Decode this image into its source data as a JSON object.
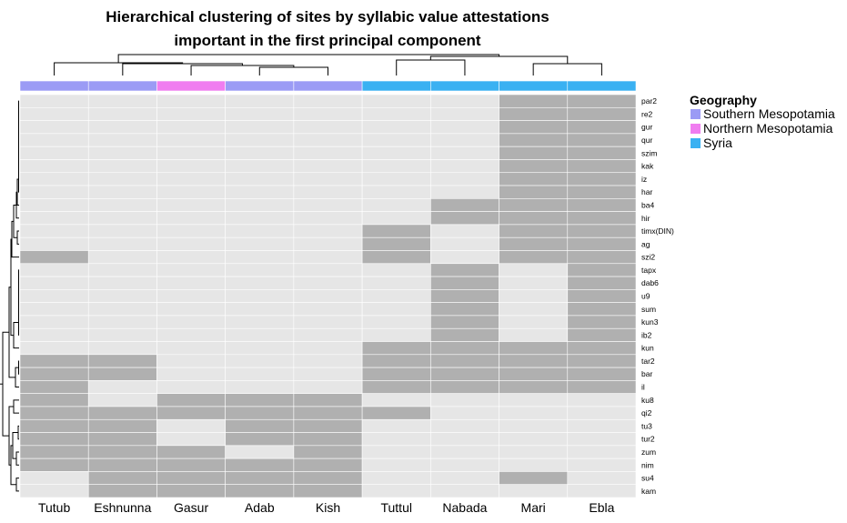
{
  "chart_data": {
    "type": "heatmap",
    "title_lines": [
      "Hierarchical clustering of sites by syllabic value attestations",
      "important in the first principal component"
    ],
    "columns": [
      "Tutub",
      "Eshnunna",
      "Gasur",
      "Adab",
      "Kish",
      "Tuttul",
      "Nabada",
      "Mari",
      "Ebla"
    ],
    "rows": [
      "par2",
      "re2",
      "gur",
      "qur",
      "szim",
      "kak",
      "iz",
      "har",
      "ba4",
      "hir",
      "timx(DIN)",
      "ag",
      "szi2",
      "tapx",
      "dab6",
      "u9",
      "sum",
      "kun3",
      "ib2",
      "kun",
      "tar2",
      "bar",
      "il",
      "ku8",
      "qi2",
      "tu3",
      "tur2",
      "zum",
      "nim",
      "su4",
      "kam"
    ],
    "values": [
      [
        0,
        0,
        0,
        0,
        0,
        0,
        0,
        1,
        1
      ],
      [
        0,
        0,
        0,
        0,
        0,
        0,
        0,
        1,
        1
      ],
      [
        0,
        0,
        0,
        0,
        0,
        0,
        0,
        1,
        1
      ],
      [
        0,
        0,
        0,
        0,
        0,
        0,
        0,
        1,
        1
      ],
      [
        0,
        0,
        0,
        0,
        0,
        0,
        0,
        1,
        1
      ],
      [
        0,
        0,
        0,
        0,
        0,
        0,
        0,
        1,
        1
      ],
      [
        0,
        0,
        0,
        0,
        0,
        0,
        0,
        1,
        1
      ],
      [
        0,
        0,
        0,
        0,
        0,
        0,
        0,
        1,
        1
      ],
      [
        0,
        0,
        0,
        0,
        0,
        0,
        1,
        1,
        1
      ],
      [
        0,
        0,
        0,
        0,
        0,
        0,
        1,
        1,
        1
      ],
      [
        0,
        0,
        0,
        0,
        0,
        1,
        0,
        1,
        1
      ],
      [
        0,
        0,
        0,
        0,
        0,
        1,
        0,
        1,
        1
      ],
      [
        1,
        0,
        0,
        0,
        0,
        1,
        0,
        1,
        1
      ],
      [
        0,
        0,
        0,
        0,
        0,
        0,
        1,
        0,
        1
      ],
      [
        0,
        0,
        0,
        0,
        0,
        0,
        1,
        0,
        1
      ],
      [
        0,
        0,
        0,
        0,
        0,
        0,
        1,
        0,
        1
      ],
      [
        0,
        0,
        0,
        0,
        0,
        0,
        1,
        0,
        1
      ],
      [
        0,
        0,
        0,
        0,
        0,
        0,
        1,
        0,
        1
      ],
      [
        0,
        0,
        0,
        0,
        0,
        0,
        1,
        0,
        1
      ],
      [
        0,
        0,
        0,
        0,
        0,
        1,
        1,
        1,
        1
      ],
      [
        1,
        1,
        0,
        0,
        0,
        1,
        1,
        1,
        1
      ],
      [
        1,
        1,
        0,
        0,
        0,
        1,
        1,
        1,
        1
      ],
      [
        1,
        0,
        0,
        0,
        0,
        1,
        1,
        1,
        1
      ],
      [
        1,
        0,
        1,
        1,
        1,
        0,
        0,
        0,
        0
      ],
      [
        1,
        1,
        1,
        1,
        1,
        1,
        0,
        0,
        0
      ],
      [
        1,
        1,
        0,
        1,
        1,
        0,
        0,
        0,
        0
      ],
      [
        1,
        1,
        0,
        1,
        1,
        0,
        0,
        0,
        0
      ],
      [
        1,
        1,
        1,
        0,
        1,
        0,
        0,
        0,
        0
      ],
      [
        1,
        1,
        1,
        1,
        1,
        0,
        0,
        0,
        0
      ],
      [
        0,
        1,
        1,
        1,
        1,
        0,
        0,
        1,
        0
      ],
      [
        0,
        1,
        1,
        1,
        1,
        0,
        0,
        0,
        0
      ]
    ],
    "geography_annotation": [
      "Southern Mesopotamia",
      "Southern Mesopotamia",
      "Northern Mesopotamia",
      "Southern Mesopotamia",
      "Southern Mesopotamia",
      "Syria",
      "Syria",
      "Syria",
      "Syria"
    ],
    "legend": {
      "title": "Geography",
      "placement": "right",
      "entries": [
        {
          "label": "Southern Mesopotamia",
          "color": "#9b9bf5"
        },
        {
          "label": "Northern Mesopotamia",
          "color": "#f07df0"
        },
        {
          "label": "Syria",
          "color": "#3ab1f2"
        }
      ]
    },
    "colors": {
      "present": "#b0b0b0",
      "absent": "#e6e6e6",
      "dendrogram": "#000000"
    },
    "grid": true
  }
}
